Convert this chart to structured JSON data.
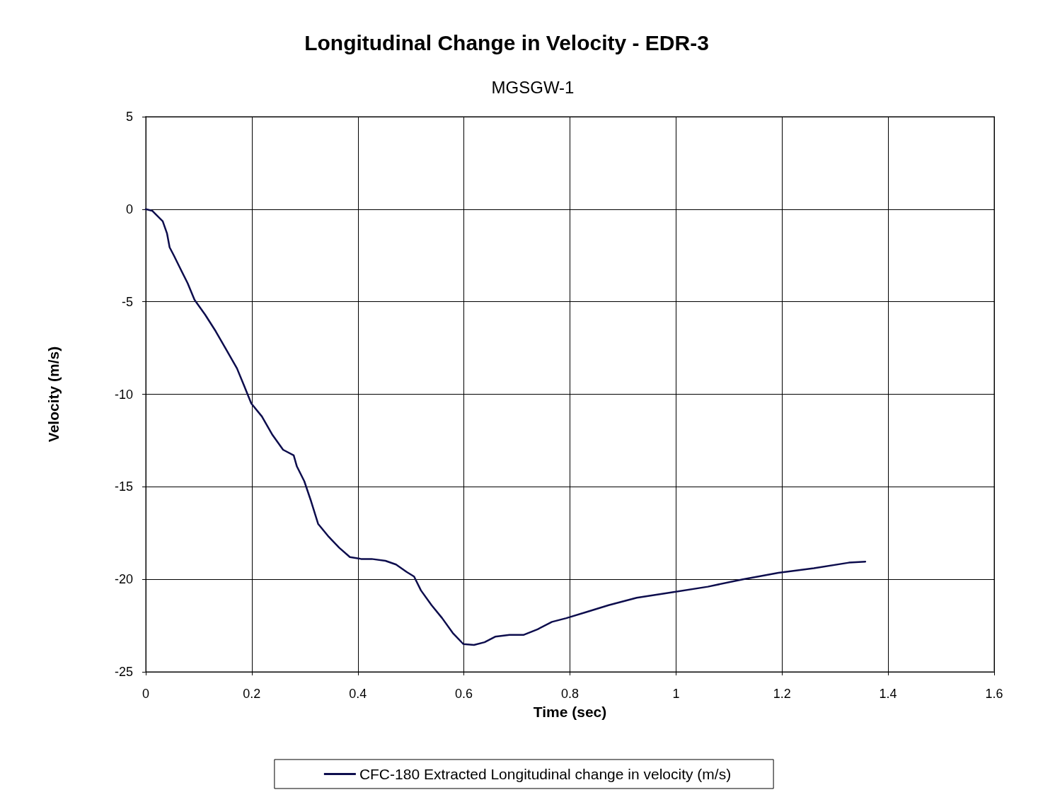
{
  "chart_data": {
    "type": "line",
    "title": "Longitudinal Change in Velocity - EDR-3",
    "subtitle": "MGSGW-1",
    "xlabel": "Time (sec)",
    "ylabel": "Velocity (m/s)",
    "x": [
      0,
      0.012,
      0.021,
      0.032,
      0.04,
      0.045,
      0.053,
      0.065,
      0.079,
      0.092,
      0.112,
      0.132,
      0.152,
      0.172,
      0.185,
      0.199,
      0.219,
      0.239,
      0.259,
      0.279,
      0.285,
      0.299,
      0.312,
      0.325,
      0.345,
      0.365,
      0.385,
      0.406,
      0.426,
      0.452,
      0.472,
      0.492,
      0.506,
      0.519,
      0.539,
      0.559,
      0.579,
      0.599,
      0.619,
      0.639,
      0.659,
      0.686,
      0.713,
      0.739,
      0.766,
      0.793,
      0.833,
      0.873,
      0.926,
      0.993,
      1.06,
      1.126,
      1.193,
      1.26,
      1.326,
      1.357
    ],
    "series": [
      {
        "name": "CFC-180 Extracted Longitudinal change in velocity (m/s)",
        "color": "#0d0d4d",
        "values": [
          0,
          -0.08,
          -0.34,
          -0.65,
          -1.3,
          -2.06,
          -2.5,
          -3.2,
          -4.0,
          -4.9,
          -5.7,
          -6.6,
          -7.6,
          -8.6,
          -9.5,
          -10.5,
          -11.2,
          -12.2,
          -13.0,
          -13.3,
          -13.9,
          -14.7,
          -15.8,
          -17.0,
          -17.7,
          -18.3,
          -18.8,
          -18.9,
          -18.9,
          -19.0,
          -19.2,
          -19.6,
          -19.85,
          -20.6,
          -21.4,
          -22.1,
          -22.9,
          -23.5,
          -23.55,
          -23.4,
          -23.1,
          -23.0,
          -23.0,
          -22.7,
          -22.3,
          -22.1,
          -21.75,
          -21.4,
          -21.0,
          -20.7,
          -20.4,
          -20.0,
          -19.65,
          -19.4,
          -19.1,
          -19.05
        ]
      }
    ],
    "xlim": [
      0,
      1.6
    ],
    "xticks": [
      0,
      0.2,
      0.4,
      0.6,
      0.8,
      1,
      1.2,
      1.4,
      1.6
    ],
    "ylim": [
      -25,
      5
    ],
    "yticks": [
      -25,
      -20,
      -15,
      -10,
      -5,
      0,
      5
    ],
    "grid": true,
    "legend": "bottom",
    "marker": "none",
    "line_style": "solid"
  }
}
